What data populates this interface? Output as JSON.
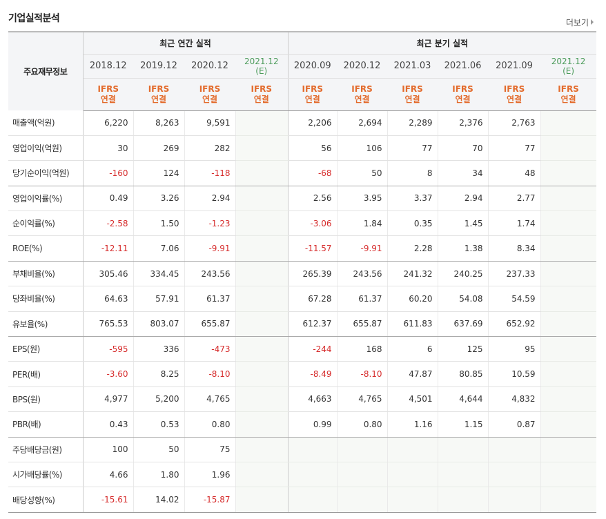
{
  "title": "기업실적분석",
  "more_label": "더보기",
  "header": {
    "main_label": "주요재무정보",
    "annual_label": "최근 연간 실적",
    "quarter_label": "최근 분기 실적",
    "annual_periods": [
      "2018.12",
      "2019.12",
      "2020.12"
    ],
    "annual_est": {
      "period": "2021.12",
      "tag": "(E)"
    },
    "quarter_periods": [
      "2020.09",
      "2020.12",
      "2021.03",
      "2021.06",
      "2021.09"
    ],
    "quarter_est": {
      "period": "2021.12",
      "tag": "(E)"
    },
    "ifrs": "IFRS",
    "consol": "연결"
  },
  "rows": [
    {
      "label": "매출액(억원)",
      "annual": [
        "6,220",
        "8,263",
        "9,591"
      ],
      "quarter": [
        "2,206",
        "2,694",
        "2,289",
        "2,376",
        "2,763"
      ]
    },
    {
      "label": "영업이익(억원)",
      "annual": [
        "30",
        "269",
        "282"
      ],
      "quarter": [
        "56",
        "106",
        "77",
        "70",
        "77"
      ]
    },
    {
      "label": "당기순이익(억원)",
      "annual": [
        "-160",
        "124",
        "-118"
      ],
      "quarter": [
        "-68",
        "50",
        "8",
        "34",
        "48"
      ]
    },
    {
      "label": "영업이익률(%)",
      "annual": [
        "0.49",
        "3.26",
        "2.94"
      ],
      "quarter": [
        "2.56",
        "3.95",
        "3.37",
        "2.94",
        "2.77"
      ]
    },
    {
      "label": "순이익률(%)",
      "annual": [
        "-2.58",
        "1.50",
        "-1.23"
      ],
      "quarter": [
        "-3.06",
        "1.84",
        "0.35",
        "1.45",
        "1.74"
      ]
    },
    {
      "label": "ROE(%)",
      "annual": [
        "-12.11",
        "7.06",
        "-9.91"
      ],
      "quarter": [
        "-11.57",
        "-9.91",
        "2.28",
        "1.38",
        "8.34"
      ]
    },
    {
      "label": "부채비율(%)",
      "annual": [
        "305.46",
        "334.45",
        "243.56"
      ],
      "quarter": [
        "265.39",
        "243.56",
        "241.32",
        "240.25",
        "237.33"
      ]
    },
    {
      "label": "당좌비율(%)",
      "annual": [
        "64.63",
        "57.91",
        "61.37"
      ],
      "quarter": [
        "67.28",
        "61.37",
        "60.20",
        "54.08",
        "54.59"
      ]
    },
    {
      "label": "유보율(%)",
      "annual": [
        "765.53",
        "803.07",
        "655.87"
      ],
      "quarter": [
        "612.37",
        "655.87",
        "611.83",
        "637.69",
        "652.92"
      ]
    },
    {
      "label": "EPS(원)",
      "annual": [
        "-595",
        "336",
        "-473"
      ],
      "quarter": [
        "-244",
        "168",
        "6",
        "125",
        "95"
      ]
    },
    {
      "label": "PER(배)",
      "annual": [
        "-3.60",
        "8.25",
        "-8.10"
      ],
      "quarter": [
        "-8.49",
        "-8.10",
        "47.87",
        "80.85",
        "10.59"
      ]
    },
    {
      "label": "BPS(원)",
      "annual": [
        "4,977",
        "5,200",
        "4,765"
      ],
      "quarter": [
        "4,663",
        "4,765",
        "4,501",
        "4,644",
        "4,832"
      ]
    },
    {
      "label": "PBR(배)",
      "annual": [
        "0.43",
        "0.53",
        "0.80"
      ],
      "quarter": [
        "0.99",
        "0.80",
        "1.16",
        "1.15",
        "0.87"
      ]
    },
    {
      "label": "주당배당금(원)",
      "annual": [
        "100",
        "50",
        "75"
      ],
      "quarter": [
        "",
        "",
        "",
        "",
        ""
      ]
    },
    {
      "label": "시가배당률(%)",
      "annual": [
        "4.66",
        "1.80",
        "1.96"
      ],
      "quarter": [
        "",
        "",
        "",
        "",
        ""
      ]
    },
    {
      "label": "배당성향(%)",
      "annual": [
        "-15.61",
        "14.02",
        "-15.87"
      ],
      "quarter": [
        "",
        "",
        "",
        "",
        ""
      ]
    }
  ],
  "colors": {
    "negative": "#d62b2b",
    "ifrs": "#e36b2c",
    "estimate": "#4b9b5a"
  }
}
